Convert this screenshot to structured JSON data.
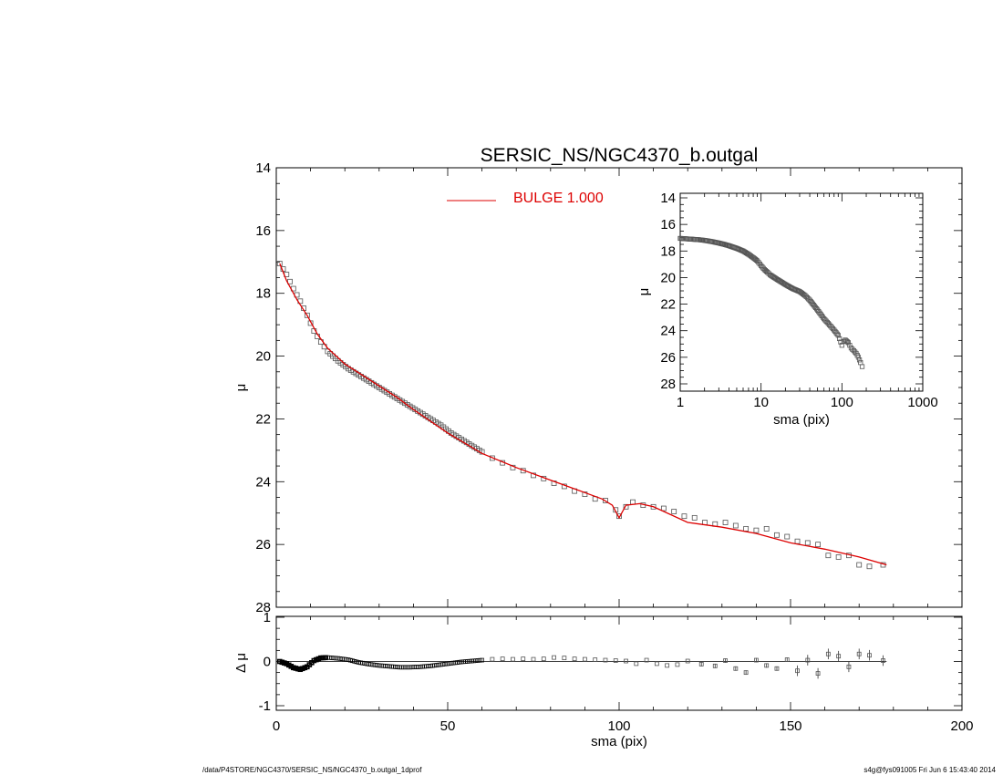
{
  "chart_data": [
    {
      "type": "line",
      "title": "SERSIC_NS/NGC4370_b.outgal",
      "xlabel": "",
      "ylabel": "μ",
      "xlim": [
        0,
        200
      ],
      "ylim": [
        28,
        14
      ],
      "x_ticks": [
        "0",
        "50",
        "100",
        "150",
        "200"
      ],
      "y_ticks": [
        "14",
        "16",
        "18",
        "20",
        "22",
        "24",
        "26",
        "28"
      ],
      "legend": {
        "position": "top-center",
        "entries": [
          {
            "label": "BULGE  1.000",
            "color": "#dd0000"
          }
        ]
      },
      "series": [
        {
          "name": "BULGE  1.000",
          "kind": "model-line",
          "color": "#dd0000",
          "x": [
            1,
            3,
            6,
            9,
            12,
            15,
            20,
            25,
            30,
            35,
            40,
            50,
            60,
            70,
            80,
            90,
            95,
            98,
            100,
            102,
            106,
            110,
            120,
            130,
            140,
            150,
            160,
            170,
            178
          ],
          "y": [
            17.05,
            17.6,
            18.2,
            18.7,
            19.3,
            19.75,
            20.25,
            20.6,
            20.95,
            21.3,
            21.7,
            22.45,
            23.1,
            23.55,
            23.95,
            24.35,
            24.55,
            24.75,
            25.15,
            24.75,
            24.7,
            24.8,
            25.3,
            25.45,
            25.65,
            25.95,
            26.15,
            26.4,
            26.65
          ]
        },
        {
          "name": "",
          "kind": "data-points",
          "color": "#555555",
          "x": [
            1,
            3,
            5,
            7,
            9,
            11,
            13,
            15,
            18,
            21,
            24,
            27,
            30,
            33,
            36,
            39,
            42,
            45,
            48,
            51,
            54,
            57,
            60,
            63,
            66,
            69,
            72,
            75,
            78,
            81,
            84,
            87,
            90,
            93,
            96,
            99,
            100,
            102,
            104,
            107,
            110,
            113,
            116,
            119,
            122,
            125,
            128,
            131,
            134,
            137,
            140,
            143,
            146,
            149,
            152,
            155,
            158,
            161,
            164,
            167,
            170,
            173,
            177
          ],
          "y": [
            17.05,
            17.4,
            17.85,
            18.25,
            18.7,
            19.2,
            19.55,
            19.85,
            20.15,
            20.4,
            20.6,
            20.8,
            21.0,
            21.2,
            21.4,
            21.6,
            21.8,
            22.0,
            22.2,
            22.45,
            22.65,
            22.85,
            23.05,
            23.25,
            23.4,
            23.55,
            23.65,
            23.8,
            23.9,
            24.05,
            24.15,
            24.3,
            24.4,
            24.55,
            24.6,
            24.9,
            25.1,
            24.8,
            24.65,
            24.75,
            24.8,
            24.85,
            24.95,
            25.1,
            25.15,
            25.3,
            25.35,
            25.3,
            25.4,
            25.5,
            25.55,
            25.5,
            25.7,
            25.75,
            25.9,
            25.95,
            26.0,
            26.35,
            26.4,
            26.35,
            26.65,
            26.7,
            26.65
          ]
        }
      ]
    },
    {
      "type": "scatter",
      "title": "",
      "xlabel": "sma (pix)",
      "ylabel": "Δ μ",
      "xlim": [
        0,
        200
      ],
      "ylim": [
        -1,
        1
      ],
      "x_ticks": [
        "0",
        "50",
        "100",
        "150",
        "200"
      ],
      "y_ticks": [
        "1",
        "0",
        "-1"
      ],
      "series": [
        {
          "name": "",
          "kind": "residual-curve",
          "color": "#000000",
          "x": [
            1,
            3,
            5,
            7,
            9,
            11,
            13,
            15,
            18,
            21,
            24,
            27,
            30,
            33,
            36,
            39,
            42,
            45,
            48,
            51,
            54,
            57,
            60
          ],
          "y": [
            0.0,
            -0.05,
            -0.14,
            -0.18,
            -0.12,
            0.02,
            0.08,
            0.09,
            0.07,
            0.04,
            -0.02,
            -0.06,
            -0.09,
            -0.11,
            -0.13,
            -0.13,
            -0.12,
            -0.1,
            -0.07,
            -0.04,
            -0.01,
            0.01,
            0.03
          ]
        },
        {
          "name": "",
          "kind": "residual-points",
          "color": "#555555",
          "x": [
            63,
            66,
            69,
            72,
            75,
            78,
            81,
            84,
            87,
            90,
            93,
            96,
            99,
            102,
            105,
            108,
            111,
            114,
            117,
            120,
            124,
            128,
            131,
            134,
            137,
            140,
            143,
            146,
            149,
            152,
            155,
            158,
            161,
            164,
            167,
            170,
            173,
            177
          ],
          "y": [
            0.05,
            0.06,
            0.05,
            0.06,
            0.05,
            0.06,
            0.09,
            0.08,
            0.06,
            0.05,
            0.04,
            0.03,
            0.02,
            0.01,
            -0.05,
            0.03,
            -0.05,
            -0.09,
            -0.07,
            0.01,
            -0.06,
            -0.1,
            0.02,
            -0.16,
            -0.25,
            0.03,
            -0.09,
            -0.16,
            0.04,
            -0.21,
            0.03,
            -0.27,
            0.17,
            0.12,
            -0.12,
            0.17,
            0.14,
            0.02
          ]
        }
      ]
    },
    {
      "type": "scatter",
      "title": "",
      "xlabel": "sma (pix)",
      "ylabel": "μ",
      "x_scale": "log",
      "xlim": [
        1,
        1000
      ],
      "ylim": [
        28,
        14
      ],
      "x_ticks": [
        "1",
        "10",
        "100",
        "1000"
      ],
      "y_ticks": [
        "14",
        "16",
        "18",
        "20",
        "22",
        "24",
        "26",
        "28"
      ],
      "series": [
        {
          "name": "",
          "kind": "data-points",
          "color": "#555555",
          "x": [
            1,
            1.3,
            1.7,
            2,
            2.5,
            3,
            3.5,
            4,
            5,
            6,
            7,
            8,
            9,
            10,
            11,
            12,
            13,
            15,
            18,
            21,
            25,
            30,
            35,
            40,
            50,
            60,
            70,
            80,
            90,
            100,
            105,
            110,
            120,
            130,
            140,
            150,
            160,
            170,
            178
          ],
          "y": [
            17.05,
            17.1,
            17.15,
            17.2,
            17.3,
            17.4,
            17.5,
            17.6,
            17.8,
            18.0,
            18.25,
            18.5,
            18.75,
            19.1,
            19.4,
            19.6,
            19.8,
            20.05,
            20.35,
            20.6,
            20.85,
            21.05,
            21.35,
            21.7,
            22.45,
            23.1,
            23.55,
            23.95,
            24.35,
            25.1,
            24.8,
            24.7,
            24.9,
            25.3,
            25.5,
            25.7,
            26.0,
            26.4,
            26.7
          ]
        }
      ]
    }
  ],
  "footer": {
    "left": "/data/P4STORE/NGC4370/SERSIC_NS/NGC4370_b.outgal_1dprof",
    "right": "s4g@fys091005  Fri Jun  6 15:43:40 2014"
  }
}
